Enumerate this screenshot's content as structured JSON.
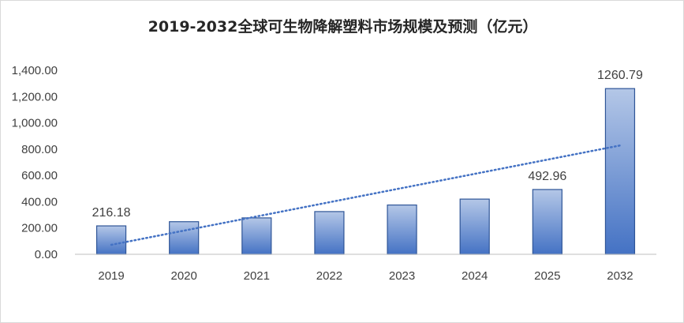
{
  "chart_data": {
    "type": "bar",
    "title": "2019-2032全球可生物降解塑料市场规模及预测（亿元）",
    "categories": [
      "2019",
      "2020",
      "2021",
      "2022",
      "2023",
      "2024",
      "2025",
      "2032"
    ],
    "values": [
      216.18,
      248,
      277,
      325,
      375,
      420,
      492.96,
      1260.79
    ],
    "data_labels": [
      "216.18",
      "",
      "",
      "",
      "",
      "",
      "492.96",
      "1260.79"
    ],
    "y_ticks": [
      {
        "value": 0,
        "label": "0.00"
      },
      {
        "value": 200,
        "label": "200.00"
      },
      {
        "value": 400,
        "label": "400.00"
      },
      {
        "value": 600,
        "label": "600.00"
      },
      {
        "value": 800,
        "label": "800.00"
      },
      {
        "value": 1000,
        "label": "1,000.00"
      },
      {
        "value": 1200,
        "label": "1,200.00"
      },
      {
        "value": 1400,
        "label": "1,400.00"
      }
    ],
    "ylim": [
      0,
      1400
    ],
    "grid": false,
    "legend": "none",
    "trendline": {
      "type": "linear",
      "style": "dotted",
      "color": "#4472C4",
      "start_value": 72,
      "end_value": 828
    },
    "colors": {
      "bar_top": "#b4c7e7",
      "bar_bottom": "#4472c4",
      "bar_edge": "#2f5597",
      "axis": "#bfbfbf",
      "text": "#404040"
    }
  }
}
